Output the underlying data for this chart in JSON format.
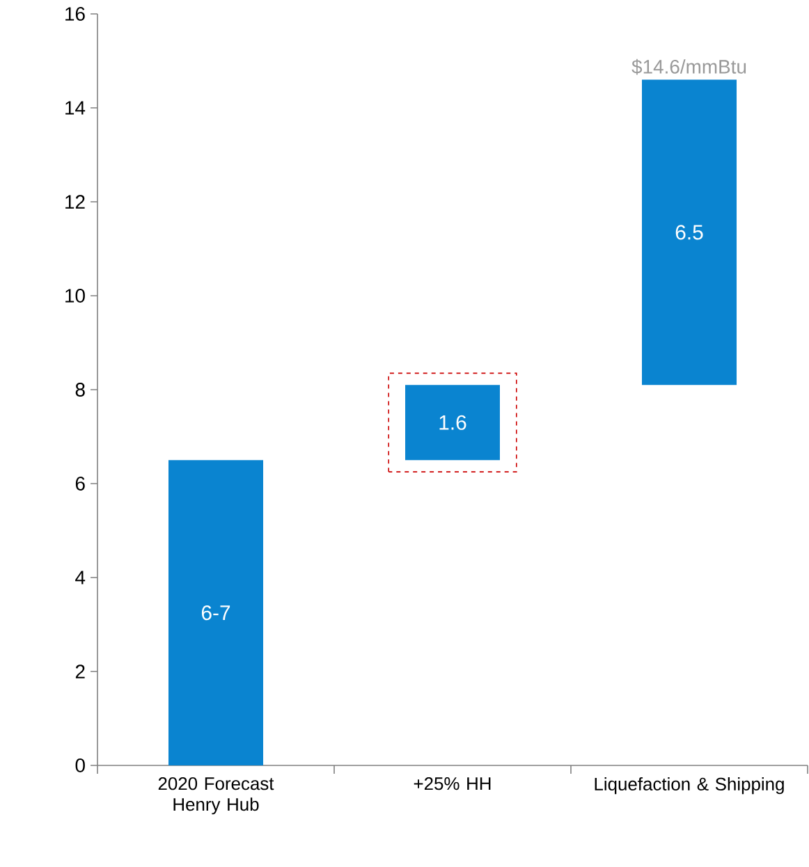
{
  "chart_data": {
    "type": "bar",
    "categories": [
      "2020 Forecast Henry Hub",
      "+25% HH",
      "Liquefaction & Shipping"
    ],
    "values": [
      6.5,
      1.6,
      6.5
    ],
    "base": [
      0,
      6.5,
      8.1
    ],
    "value_labels": [
      "6-7",
      "1.6",
      "6.5"
    ],
    "color": "#0a84d0",
    "ylim": [
      0,
      16
    ],
    "yticks": [
      0,
      2,
      4,
      6,
      8,
      10,
      12,
      14,
      16
    ],
    "annotations": [
      {
        "text": "$14.6/mmBtu",
        "x": "Liquefaction & Shipping",
        "y": 14.6
      }
    ],
    "grid": false
  }
}
